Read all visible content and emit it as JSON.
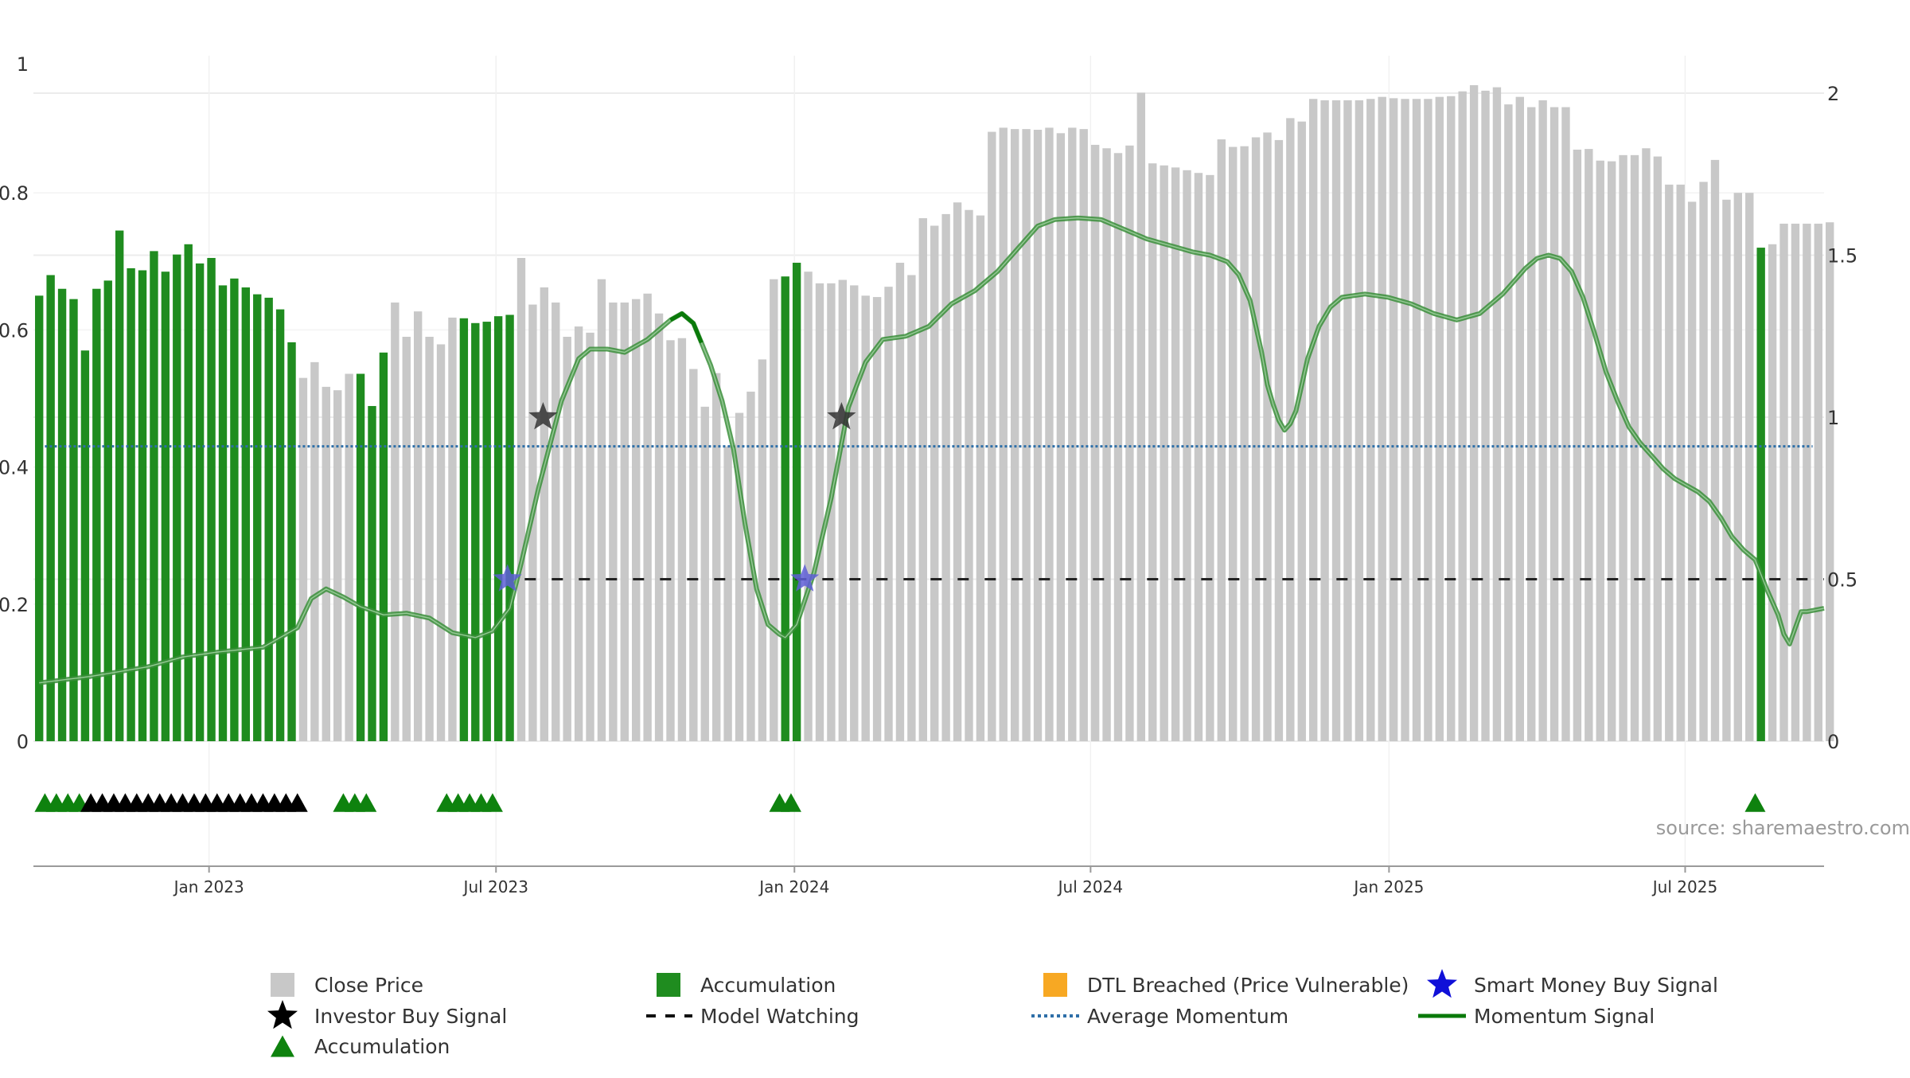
{
  "chart_data": {
    "type": "bar",
    "title": "",
    "source": "source: sharemaestro.com",
    "left_axis": {
      "min": 0,
      "max": 1,
      "ticks": [
        0,
        0.2,
        0.4,
        0.6,
        0.8,
        1
      ],
      "tick_labels": [
        "0",
        "0.2",
        "0.4",
        "0.6",
        "0.8",
        "1"
      ]
    },
    "right_axis": {
      "min": 0,
      "max": 2,
      "ticks": [
        0,
        0.5,
        1,
        1.5,
        2
      ],
      "tick_labels": [
        "0",
        "0.5",
        "1",
        "1.5",
        "2"
      ]
    },
    "x_axis": {
      "start_week": 0,
      "end_week": 156,
      "num_bars": 156,
      "tick_weeks": [
        15.3,
        40.3,
        66.3,
        92.1,
        118.1,
        143.9
      ],
      "tick_labels": [
        "Jan 2023",
        "Jul 2023",
        "Jan 2024",
        "Jul 2024",
        "Jan 2025",
        "Jul 2025"
      ]
    },
    "close_price": [
      0.65,
      0.68,
      0.66,
      0.645,
      0.57,
      0.66,
      0.672,
      0.745,
      0.69,
      0.687,
      0.715,
      0.685,
      0.71,
      0.725,
      0.697,
      0.705,
      0.665,
      0.675,
      0.662,
      0.652,
      0.647,
      0.63,
      0.582,
      0.53,
      0.553,
      0.517,
      0.512,
      0.536,
      0.536,
      0.489,
      0.567,
      0.64,
      0.59,
      0.627,
      0.59,
      0.579,
      0.618,
      0.617,
      0.61,
      0.612,
      0.62,
      0.622,
      0.705,
      0.637,
      0.662,
      0.64,
      0.59,
      0.605,
      0.596,
      0.674,
      0.64,
      0.64,
      0.645,
      0.653,
      0.624,
      0.585,
      0.588,
      0.543,
      0.488,
      0.537,
      0.43,
      0.479,
      0.51,
      0.557,
      0.674,
      0.678,
      0.698,
      0.685,
      0.668,
      0.668,
      0.673,
      0.665,
      0.65,
      0.648,
      0.663,
      0.698,
      0.68,
      0.763,
      0.752,
      0.769,
      0.786,
      0.775,
      0.767,
      0.889,
      0.895,
      0.893,
      0.893,
      0.892,
      0.895,
      0.887,
      0.895,
      0.893,
      0.87,
      0.865,
      0.858,
      0.869,
      0.946,
      0.843,
      0.84,
      0.837,
      0.833,
      0.829,
      0.826,
      0.878,
      0.867,
      0.868,
      0.881,
      0.888,
      0.877,
      0.909,
      0.904,
      0.937,
      0.935,
      0.935,
      0.935,
      0.935,
      0.937,
      0.94,
      0.938,
      0.937,
      0.937,
      0.937,
      0.94,
      0.941,
      0.948,
      0.957,
      0.949,
      0.954,
      0.929,
      0.94,
      0.925,
      0.935,
      0.925,
      0.925,
      0.863,
      0.864,
      0.847,
      0.846,
      0.855,
      0.855,
      0.865,
      0.853,
      0.812,
      0.812,
      0.787,
      0.816,
      0.848,
      0.79,
      0.8,
      0.8,
      0.72,
      0.725,
      0.755,
      0.755,
      0.755,
      0.755,
      0.757
    ],
    "accumulation_bars": [
      0,
      1,
      2,
      3,
      4,
      5,
      6,
      7,
      8,
      9,
      10,
      11,
      12,
      13,
      14,
      15,
      16,
      17,
      18,
      19,
      20,
      21,
      22,
      28,
      29,
      30,
      37,
      38,
      39,
      40,
      41,
      65,
      66,
      150
    ],
    "momentum_signal": [
      [
        0.5,
        0.18
      ],
      [
        5,
        0.2
      ],
      [
        10,
        0.23
      ],
      [
        13,
        0.26
      ],
      [
        16,
        0.275
      ],
      [
        20,
        0.29
      ],
      [
        23,
        0.35
      ],
      [
        24.2,
        0.44
      ],
      [
        25.5,
        0.47
      ],
      [
        27,
        0.445
      ],
      [
        28.5,
        0.415
      ],
      [
        30.5,
        0.39
      ],
      [
        32.5,
        0.395
      ],
      [
        34.5,
        0.38
      ],
      [
        36.5,
        0.335
      ],
      [
        38.5,
        0.32
      ],
      [
        40,
        0.34
      ],
      [
        41.5,
        0.41
      ],
      [
        42.5,
        0.55
      ],
      [
        44,
        0.78
      ],
      [
        46,
        1.05
      ],
      [
        47.5,
        1.18
      ],
      [
        48.5,
        1.21
      ],
      [
        50,
        1.21
      ],
      [
        51.5,
        1.2
      ],
      [
        53.5,
        1.24
      ],
      [
        55.5,
        1.3
      ],
      [
        56.5,
        1.32
      ],
      [
        57.5,
        1.29
      ],
      [
        58.2,
        1.23
      ],
      [
        59,
        1.16
      ],
      [
        60,
        1.05
      ],
      [
        61,
        0.9
      ],
      [
        62,
        0.67
      ],
      [
        63,
        0.47
      ],
      [
        64,
        0.36
      ],
      [
        65,
        0.33
      ],
      [
        65.5,
        0.32
      ],
      [
        66.5,
        0.36
      ],
      [
        68,
        0.52
      ],
      [
        69.5,
        0.75
      ],
      [
        71,
        1.03
      ],
      [
        72.5,
        1.17
      ],
      [
        74,
        1.24
      ],
      [
        76,
        1.25
      ],
      [
        78,
        1.28
      ],
      [
        80,
        1.35
      ],
      [
        82,
        1.39
      ],
      [
        84,
        1.45
      ],
      [
        86,
        1.53
      ],
      [
        87.5,
        1.59
      ],
      [
        89,
        1.61
      ],
      [
        91,
        1.615
      ],
      [
        93,
        1.61
      ],
      [
        95,
        1.58
      ],
      [
        97,
        1.55
      ],
      [
        99,
        1.53
      ],
      [
        101,
        1.51
      ],
      [
        102.5,
        1.5
      ],
      [
        104,
        1.48
      ],
      [
        105,
        1.44
      ],
      [
        106,
        1.36
      ],
      [
        107,
        1.2
      ],
      [
        107.5,
        1.1
      ],
      [
        108,
        1.04
      ],
      [
        108.5,
        0.99
      ],
      [
        109,
        0.96
      ],
      [
        109.5,
        0.98
      ],
      [
        110,
        1.02
      ],
      [
        110.5,
        1.1
      ],
      [
        111,
        1.18
      ],
      [
        112,
        1.28
      ],
      [
        113,
        1.34
      ],
      [
        114,
        1.37
      ],
      [
        116,
        1.38
      ],
      [
        118,
        1.37
      ],
      [
        120,
        1.35
      ],
      [
        122,
        1.32
      ],
      [
        124,
        1.3
      ],
      [
        126,
        1.32
      ],
      [
        128,
        1.38
      ],
      [
        130,
        1.46
      ],
      [
        131,
        1.49
      ],
      [
        132,
        1.5
      ],
      [
        133,
        1.49
      ],
      [
        134,
        1.45
      ],
      [
        135,
        1.37
      ],
      [
        136,
        1.26
      ],
      [
        137,
        1.14
      ],
      [
        138,
        1.05
      ],
      [
        139,
        0.97
      ],
      [
        140,
        0.92
      ],
      [
        141,
        0.88
      ],
      [
        142,
        0.84
      ],
      [
        143,
        0.81
      ],
      [
        144,
        0.79
      ],
      [
        145,
        0.77
      ],
      [
        146,
        0.74
      ],
      [
        147,
        0.69
      ],
      [
        148,
        0.63
      ],
      [
        149,
        0.59
      ],
      [
        150,
        0.56
      ],
      [
        151,
        0.47
      ],
      [
        152,
        0.39
      ],
      [
        152.5,
        0.33
      ],
      [
        153,
        0.3
      ],
      [
        153.5,
        0.35
      ],
      [
        154,
        0.4
      ],
      [
        154.5,
        0.4
      ],
      [
        156,
        0.41
      ]
    ],
    "momentum_solid_segments": [
      [
        55.5,
        58.2
      ]
    ],
    "average_momentum": 0.91,
    "model_watching_level": 0.5,
    "model_watching_range": [
      42.8,
      156
    ],
    "smart_money_signals": [
      {
        "week": 41.3,
        "value": 0.5
      },
      {
        "week": 67.2,
        "value": 0.5
      }
    ],
    "investor_signals": [
      {
        "week": 44.4,
        "value": 1.0
      },
      {
        "week": 70.4,
        "value": 1.0
      }
    ],
    "accumulation_triangles": [
      1,
      2,
      3,
      4,
      27,
      28,
      29,
      36,
      37,
      38,
      39,
      40,
      65,
      66,
      150
    ],
    "investor_triangles": [
      5,
      6,
      7,
      8,
      9,
      10,
      11,
      12,
      13,
      14,
      15,
      16,
      17,
      18,
      19,
      20,
      21,
      22,
      23
    ],
    "colors": {
      "close_price": "#c8c8c8",
      "accumulation": "#1f8c1f",
      "momentum": "#3a8e3a",
      "momentum_dark": "#0a7a0a",
      "average_momentum": "#2e6fa8",
      "model_watching": "#222222",
      "smart_money": "#5e5ed6",
      "investor": "#333333",
      "triangle_accum": "#0e820e",
      "triangle_investor": "#000000",
      "dtl": "#f7a823",
      "grid": "#ececec",
      "axis_text": "#333333",
      "source": "#9a9a9a"
    },
    "legend": [
      {
        "key": "close_price",
        "label": "Close Price",
        "symbol": "square-gray"
      },
      {
        "key": "accumulation_bar",
        "label": "Accumulation",
        "symbol": "square-green"
      },
      {
        "key": "dtl",
        "label": "DTL Breached (Price Vulnerable)",
        "symbol": "square-orange"
      },
      {
        "key": "smart_money",
        "label": "Smart Money Buy Signal",
        "symbol": "star-blue"
      },
      {
        "key": "investor",
        "label": "Investor Buy Signal",
        "symbol": "star-black"
      },
      {
        "key": "model_watching",
        "label": "Model Watching",
        "symbol": "dash-black"
      },
      {
        "key": "avg_momentum",
        "label": "Average Momentum",
        "symbol": "dot-blue"
      },
      {
        "key": "momentum",
        "label": "Momentum Signal",
        "symbol": "line-green"
      },
      {
        "key": "accum_triangle",
        "label": "Accumulation",
        "symbol": "triangle-green"
      }
    ]
  }
}
